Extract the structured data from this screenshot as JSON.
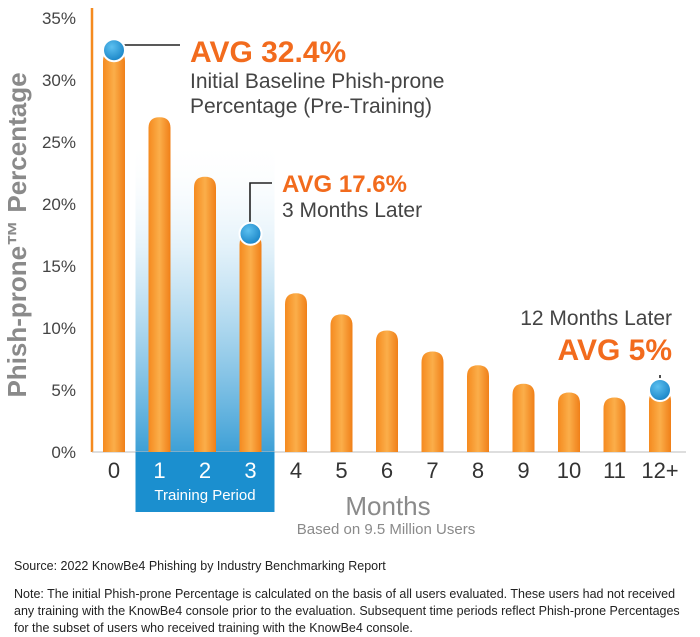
{
  "chart_data": {
    "type": "bar",
    "categories": [
      "0",
      "1",
      "2",
      "3",
      "4",
      "5",
      "6",
      "7",
      "8",
      "9",
      "10",
      "11",
      "12+"
    ],
    "values": [
      32.4,
      27.0,
      22.2,
      17.6,
      12.8,
      11.1,
      9.8,
      8.1,
      7.0,
      5.5,
      4.8,
      4.4,
      5.0
    ],
    "ylim": [
      0,
      35
    ],
    "yticks": [
      "0%",
      "5%",
      "10%",
      "15%",
      "20%",
      "25%",
      "30%",
      "35%"
    ],
    "ylabel": "Phish-prone™ Percentage",
    "xlabel": "Months",
    "subtitle": "Based on 9.5 Million Users",
    "bar_color": "#f7931e",
    "highlight_band": {
      "categories": [
        "1",
        "2",
        "3"
      ],
      "label": "Training Period",
      "color": "#1b8fcf"
    },
    "annotations": [
      {
        "category": "0",
        "value": 32.4,
        "headline": "AVG 32.4%",
        "lines": [
          "Initial Baseline Phish-prone",
          "Percentage (Pre-Training)"
        ]
      },
      {
        "category": "3",
        "value": 17.6,
        "headline": "AVG 17.6%",
        "lines": [
          "3 Months Later"
        ]
      },
      {
        "category": "12+",
        "value": 5.0,
        "headline": "AVG 5%",
        "lines": [
          "12 Months Later"
        ]
      }
    ],
    "marker_color": "#1b8fcf",
    "accent_color": "#f26b1d"
  },
  "footer": {
    "source": "Source: 2022 KnowBe4 Phishing by Industry Benchmarking Report",
    "note": "Note: The initial Phish-prone Percentage is calculated on the basis of all users evaluated. These users had not received any training with the KnowBe4 console prior to the evaluation. Subsequent time periods reflect Phish-prone Percentages for the subset of users who received training with the KnowBe4 console."
  }
}
